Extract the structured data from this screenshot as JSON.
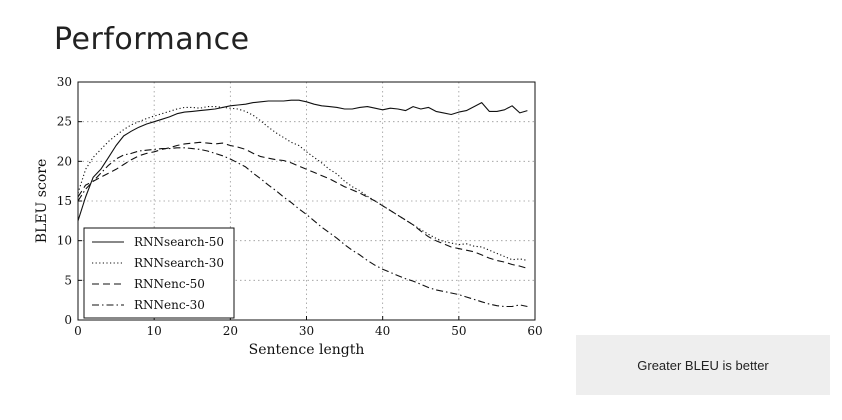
{
  "slide": {
    "title": "Performance",
    "note": "Greater BLEU is better"
  },
  "chart_data": {
    "type": "line",
    "xlabel": "Sentence length",
    "ylabel": "BLEU score",
    "xlim": [
      0,
      60
    ],
    "ylim": [
      0,
      30
    ],
    "xticks": [
      0,
      10,
      20,
      30,
      40,
      50,
      60
    ],
    "yticks": [
      0,
      5,
      10,
      15,
      20,
      25,
      30
    ],
    "grid": true,
    "legend_position": "bottom-left",
    "series": [
      {
        "name": "RNNsearch-50",
        "style": "solid",
        "x": [
          0,
          1,
          2,
          3,
          4,
          5,
          6,
          7,
          8,
          9,
          10,
          11,
          12,
          13,
          14,
          15,
          16,
          17,
          18,
          19,
          20,
          21,
          22,
          23,
          24,
          25,
          26,
          27,
          28,
          29,
          30,
          31,
          32,
          33,
          34,
          35,
          36,
          37,
          38,
          39,
          40,
          41,
          42,
          43,
          44,
          45,
          46,
          47,
          48,
          49,
          50,
          51,
          52,
          53,
          54,
          55,
          56,
          57,
          58,
          59
        ],
        "y": [
          12.5,
          15.5,
          18.0,
          19.0,
          20.5,
          22.0,
          23.2,
          23.8,
          24.3,
          24.7,
          25.0,
          25.3,
          25.6,
          26.0,
          26.2,
          26.3,
          26.4,
          26.5,
          26.6,
          26.8,
          27.0,
          27.1,
          27.2,
          27.4,
          27.5,
          27.6,
          27.6,
          27.6,
          27.7,
          27.7,
          27.5,
          27.2,
          27.0,
          26.9,
          26.8,
          26.6,
          26.6,
          26.8,
          26.9,
          26.7,
          26.5,
          26.7,
          26.6,
          26.4,
          26.9,
          26.6,
          26.8,
          26.3,
          26.1,
          25.9,
          26.2,
          26.4,
          26.9,
          27.4,
          26.3,
          26.3,
          26.5,
          27.0,
          26.1,
          26.4
        ]
      },
      {
        "name": "RNNsearch-30",
        "style": "dotted",
        "x": [
          0,
          1,
          2,
          3,
          4,
          5,
          6,
          7,
          8,
          9,
          10,
          11,
          12,
          13,
          14,
          15,
          16,
          17,
          18,
          19,
          20,
          21,
          22,
          23,
          24,
          25,
          26,
          27,
          28,
          29,
          30,
          31,
          32,
          33,
          34,
          35,
          36,
          37,
          38,
          39,
          40,
          41,
          42,
          43,
          44,
          45,
          46,
          47,
          48,
          49,
          50,
          51,
          52,
          53,
          54,
          55,
          56,
          57,
          58,
          59
        ],
        "y": [
          16.0,
          19.0,
          20.5,
          21.5,
          22.5,
          23.3,
          24.0,
          24.6,
          25.0,
          25.4,
          25.7,
          26.0,
          26.3,
          26.6,
          26.8,
          26.8,
          26.7,
          26.9,
          26.9,
          26.8,
          26.7,
          26.6,
          26.3,
          25.8,
          25.1,
          24.3,
          23.6,
          23.0,
          22.4,
          22.0,
          21.2,
          20.5,
          19.8,
          19.0,
          18.4,
          17.5,
          16.8,
          16.3,
          15.6,
          15.0,
          14.4,
          13.8,
          13.2,
          12.6,
          12.0,
          11.4,
          10.8,
          10.3,
          9.9,
          9.7,
          9.5,
          9.6,
          9.3,
          9.2,
          8.8,
          8.4,
          8.0,
          7.6,
          7.7,
          7.5
        ]
      },
      {
        "name": "RNNenc-50",
        "style": "dashed",
        "x": [
          0,
          1,
          2,
          3,
          4,
          5,
          6,
          7,
          8,
          9,
          10,
          11,
          12,
          13,
          14,
          15,
          16,
          17,
          18,
          19,
          20,
          21,
          22,
          23,
          24,
          25,
          26,
          27,
          28,
          29,
          30,
          31,
          32,
          33,
          34,
          35,
          36,
          37,
          38,
          39,
          40,
          41,
          42,
          43,
          44,
          45,
          46,
          47,
          48,
          49,
          50,
          51,
          52,
          53,
          54,
          55,
          56,
          57,
          58,
          59
        ],
        "y": [
          15.5,
          17.0,
          17.5,
          18.0,
          18.5,
          19.0,
          19.6,
          20.2,
          20.7,
          21.0,
          21.2,
          21.5,
          21.7,
          22.0,
          22.2,
          22.3,
          22.4,
          22.3,
          22.2,
          22.3,
          22.0,
          21.8,
          21.5,
          21.0,
          20.6,
          20.4,
          20.2,
          20.1,
          19.8,
          19.4,
          19.0,
          18.6,
          18.2,
          17.8,
          17.3,
          16.8,
          16.4,
          16.0,
          15.5,
          15.0,
          14.4,
          13.8,
          13.2,
          12.6,
          12.0,
          11.2,
          10.5,
          10.0,
          9.6,
          9.2,
          9.0,
          8.8,
          8.6,
          8.2,
          7.8,
          7.5,
          7.3,
          7.0,
          6.8,
          6.5
        ]
      },
      {
        "name": "RNNenc-30",
        "style": "dashdot",
        "x": [
          0,
          1,
          2,
          3,
          4,
          5,
          6,
          7,
          8,
          9,
          10,
          11,
          12,
          13,
          14,
          15,
          16,
          17,
          18,
          19,
          20,
          21,
          22,
          23,
          24,
          25,
          26,
          27,
          28,
          29,
          30,
          31,
          32,
          33,
          34,
          35,
          36,
          37,
          38,
          39,
          40,
          41,
          42,
          43,
          44,
          45,
          46,
          47,
          48,
          49,
          50,
          51,
          52,
          53,
          54,
          55,
          56,
          57,
          58,
          59
        ],
        "y": [
          15.0,
          16.5,
          17.5,
          18.5,
          19.5,
          20.3,
          20.8,
          21.0,
          21.3,
          21.4,
          21.5,
          21.6,
          21.6,
          21.7,
          21.7,
          21.6,
          21.5,
          21.3,
          21.0,
          20.7,
          20.3,
          19.8,
          19.3,
          18.5,
          17.8,
          17.0,
          16.3,
          15.5,
          14.8,
          14.0,
          13.3,
          12.5,
          11.7,
          11.0,
          10.3,
          9.5,
          8.8,
          8.2,
          7.5,
          6.9,
          6.4,
          6.0,
          5.6,
          5.2,
          4.9,
          4.5,
          4.1,
          3.8,
          3.6,
          3.4,
          3.2,
          2.9,
          2.6,
          2.3,
          2.0,
          1.8,
          1.7,
          1.7,
          1.9,
          1.7
        ]
      }
    ]
  }
}
